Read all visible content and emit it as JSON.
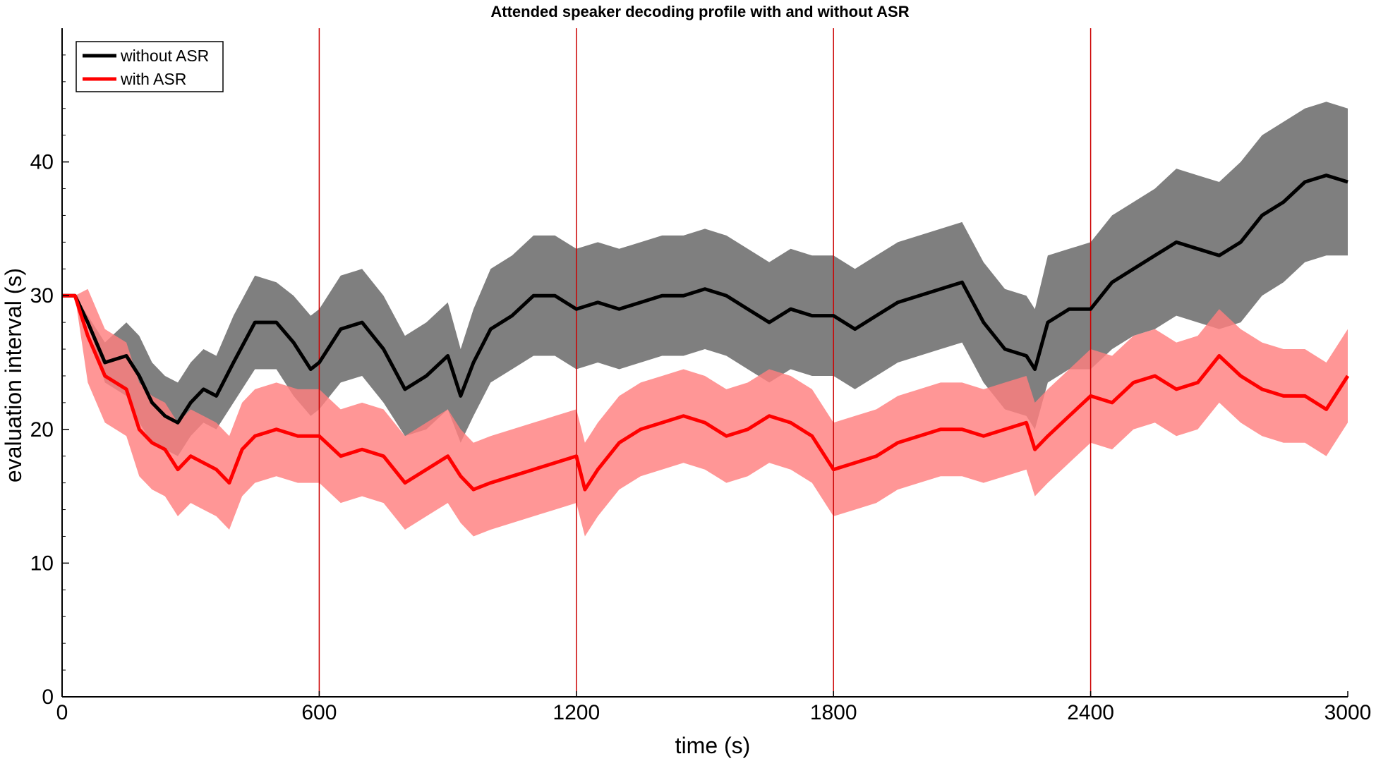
{
  "chart_data": {
    "type": "line",
    "title": "Attended speaker decoding profile with and without ASR",
    "xlabel": "time (s)",
    "ylabel": "evaluation interval (s)",
    "xlim": [
      0,
      3000
    ],
    "ylim": [
      0,
      50
    ],
    "x_ticks": [
      0,
      600,
      1200,
      1800,
      2400,
      3000
    ],
    "y_ticks": [
      0,
      10,
      20,
      30,
      40
    ],
    "grid": false,
    "legend_position": "top-left",
    "vertical_markers": [
      600,
      1200,
      1800,
      2400
    ],
    "colors": {
      "without_line": "#000000",
      "without_band": "#7f7f7f",
      "with_line": "#ff0000",
      "with_band": "#ff7f7f",
      "marker": "#cc0000"
    },
    "series": [
      {
        "name": "without ASR",
        "x": [
          0,
          30,
          60,
          100,
          150,
          180,
          210,
          240,
          270,
          300,
          330,
          360,
          400,
          450,
          500,
          540,
          580,
          600,
          650,
          700,
          750,
          800,
          850,
          900,
          930,
          960,
          1000,
          1050,
          1100,
          1150,
          1200,
          1250,
          1300,
          1350,
          1400,
          1450,
          1500,
          1550,
          1600,
          1650,
          1700,
          1750,
          1800,
          1850,
          1900,
          1950,
          2000,
          2050,
          2100,
          2150,
          2200,
          2250,
          2270,
          2300,
          2350,
          2400,
          2450,
          2500,
          2550,
          2600,
          2650,
          2700,
          2750,
          2800,
          2850,
          2900,
          2950,
          3000
        ],
        "values": [
          30,
          30,
          28,
          25,
          25.5,
          24,
          22,
          21,
          20.5,
          22,
          23,
          22.5,
          25,
          28,
          28,
          26.5,
          24.5,
          25,
          27.5,
          28,
          26,
          23,
          24,
          25.5,
          22.5,
          25,
          27.5,
          28.5,
          30,
          30,
          29,
          29.5,
          29,
          29.5,
          30,
          30,
          30.5,
          30,
          29,
          28,
          29,
          28.5,
          28.5,
          27.5,
          28.5,
          29.5,
          30,
          30.5,
          31,
          28,
          26,
          25.5,
          24.5,
          28,
          29,
          29,
          31,
          32,
          33,
          34,
          33.5,
          33,
          34,
          36,
          37,
          38.5,
          39,
          38.5
        ],
        "band_lower": [
          30,
          30,
          28,
          23.5,
          22.5,
          20.5,
          19,
          18.5,
          18,
          19.5,
          20.5,
          20,
          22,
          24.5,
          24.5,
          22.5,
          21,
          21.5,
          23.5,
          24,
          22,
          19.5,
          20,
          21.5,
          19,
          21,
          23.5,
          24.5,
          25.5,
          25.5,
          24.5,
          25,
          24.5,
          25,
          25.5,
          25.5,
          26,
          25.5,
          24.5,
          23.5,
          24.5,
          24,
          24,
          23,
          24,
          25,
          25.5,
          26,
          26.5,
          23.5,
          21.5,
          21,
          20,
          23.5,
          24.5,
          24.5,
          26,
          27,
          27.5,
          28.5,
          28,
          27.5,
          28,
          30,
          31,
          32.5,
          33,
          33
        ],
        "band_upper": [
          30,
          30,
          28.5,
          26.5,
          28,
          27,
          25,
          24,
          23.5,
          25,
          26,
          25.5,
          28.5,
          31.5,
          31,
          30,
          28.5,
          29,
          31.5,
          32,
          30,
          27,
          28,
          29.5,
          26,
          29,
          32,
          33,
          34.5,
          34.5,
          33.5,
          34,
          33.5,
          34,
          34.5,
          34.5,
          35,
          34.5,
          33.5,
          32.5,
          33.5,
          33,
          33,
          32,
          33,
          34,
          34.5,
          35,
          35.5,
          32.5,
          30.5,
          30,
          29,
          33,
          33.5,
          34,
          36,
          37,
          38,
          39.5,
          39,
          38.5,
          40,
          42,
          43,
          44,
          44.5,
          44
        ]
      },
      {
        "name": "with ASR",
        "x": [
          0,
          30,
          60,
          100,
          150,
          180,
          210,
          240,
          270,
          300,
          330,
          360,
          390,
          420,
          450,
          500,
          550,
          600,
          650,
          700,
          750,
          800,
          850,
          900,
          930,
          960,
          1000,
          1050,
          1100,
          1150,
          1200,
          1220,
          1250,
          1300,
          1350,
          1400,
          1450,
          1500,
          1550,
          1600,
          1650,
          1700,
          1750,
          1800,
          1850,
          1900,
          1950,
          2000,
          2050,
          2100,
          2150,
          2200,
          2250,
          2270,
          2300,
          2350,
          2400,
          2450,
          2500,
          2550,
          2600,
          2650,
          2700,
          2750,
          2800,
          2850,
          2900,
          2950,
          3000
        ],
        "values": [
          30,
          30,
          27,
          24,
          23,
          20,
          19,
          18.5,
          17,
          18,
          17.5,
          17,
          16,
          18.5,
          19.5,
          20,
          19.5,
          19.5,
          18,
          18.5,
          18,
          16,
          17,
          18,
          16.5,
          15.5,
          16,
          16.5,
          17,
          17.5,
          18,
          15.5,
          17,
          19,
          20,
          20.5,
          21,
          20.5,
          19.5,
          20,
          21,
          20.5,
          19.5,
          17,
          17.5,
          18,
          19,
          19.5,
          20,
          20,
          19.5,
          20,
          20.5,
          18.5,
          19.5,
          21,
          22.5,
          22,
          23.5,
          24,
          23,
          23.5,
          25.5,
          24,
          23,
          22.5,
          22.5,
          21.5,
          24
        ]
      }
    ]
  }
}
